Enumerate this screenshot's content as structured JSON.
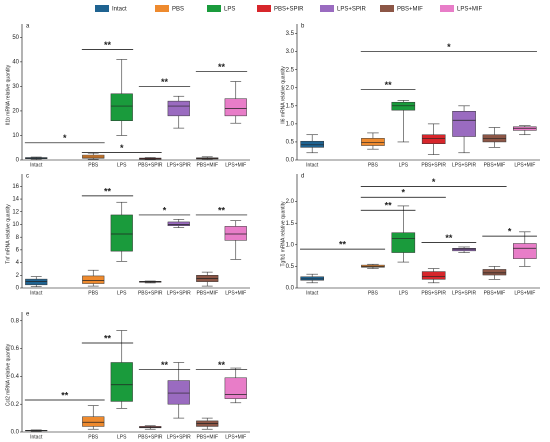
{
  "legend": [
    {
      "name": "Intact",
      "color": "#1f6391"
    },
    {
      "name": "PBS",
      "color": "#ee8a2e"
    },
    {
      "name": "LPS",
      "color": "#1a9b3c"
    },
    {
      "name": "PBS+SPIR",
      "color": "#d7262b"
    },
    {
      "name": "LPS+SPIR",
      "color": "#9a6bc0"
    },
    {
      "name": "PBS+MIF",
      "color": "#8c5646"
    },
    {
      "name": "LPS+MIF",
      "color": "#e87dc8"
    }
  ],
  "chart_data": [
    {
      "type": "box",
      "label": "a",
      "ylabel": "Il1b mRNA relative quantity",
      "categories": [
        "Intact",
        null,
        "PBS",
        "LPS",
        "PBS+SPIR",
        "LPS+SPIR",
        "PBS+MIF",
        "LPS+MIF"
      ],
      "boxes": [
        {
          "min": 0.2,
          "q1": 0.5,
          "median": 0.8,
          "q3": 1.0,
          "max": 1.2
        },
        null,
        {
          "min": 0.3,
          "q1": 0.7,
          "median": 1.2,
          "q3": 2.0,
          "max": 2.8
        },
        {
          "min": 10,
          "q1": 16,
          "median": 22,
          "q3": 27,
          "max": 41
        },
        {
          "min": 0.1,
          "q1": 0.3,
          "median": 0.5,
          "q3": 0.8,
          "max": 1.0
        },
        {
          "min": 13,
          "q1": 18,
          "median": 22,
          "q3": 24,
          "max": 26
        },
        {
          "min": 0.2,
          "q1": 0.4,
          "median": 0.6,
          "q3": 0.9,
          "max": 1.3
        },
        {
          "min": 15,
          "q1": 18,
          "median": 21,
          "q3": 25,
          "max": 32
        }
      ],
      "ylim": [
        0,
        53
      ],
      "yticks": [
        0,
        10,
        20,
        30,
        40,
        50
      ],
      "annotations": [
        {
          "label": "**",
          "from": 2,
          "to": 3,
          "y": 45
        },
        {
          "label": "**",
          "from": 4,
          "to": 5,
          "y": 30
        },
        {
          "label": "**",
          "from": 6,
          "to": 7,
          "y": 36
        },
        {
          "label": "*",
          "from": 0,
          "to": 2,
          "y": 7
        },
        {
          "label": "*",
          "from": 2,
          "to": 4,
          "y": 3
        }
      ]
    },
    {
      "type": "box",
      "label": "b",
      "ylabel": "Il6 mRNA relative quantity",
      "categories": [
        "Intact",
        null,
        "PBS",
        "LPS",
        "PBS+SPIR",
        "LPS+SPIR",
        "PBS+MIF",
        "LPS+MIF"
      ],
      "boxes": [
        {
          "min": 0.2,
          "q1": 0.35,
          "median": 0.42,
          "q3": 0.52,
          "max": 0.7
        },
        null,
        {
          "min": 0.3,
          "q1": 0.4,
          "median": 0.48,
          "q3": 0.6,
          "max": 0.75
        },
        {
          "min": 0.5,
          "q1": 1.38,
          "median": 1.5,
          "q3": 1.6,
          "max": 1.65
        },
        {
          "min": 0.15,
          "q1": 0.45,
          "median": 0.6,
          "q3": 0.7,
          "max": 1.0
        },
        {
          "min": 0.2,
          "q1": 0.65,
          "median": 1.1,
          "q3": 1.35,
          "max": 1.5
        },
        {
          "min": 0.35,
          "q1": 0.5,
          "median": 0.6,
          "q3": 0.7,
          "max": 0.9
        },
        {
          "min": 0.7,
          "q1": 0.82,
          "median": 0.88,
          "q3": 0.92,
          "max": 0.95
        }
      ],
      "ylim": [
        0,
        3.6
      ],
      "yticks": [
        {
          "value": 0,
          "label": "0.0"
        },
        0.5,
        {
          "value": 1,
          "label": "1.0"
        },
        1.5,
        {
          "value": 2,
          "label": "2.0"
        },
        2.5,
        {
          "value": 3,
          "label": "3.0"
        },
        3.5
      ],
      "annotations": [
        {
          "label": "**",
          "from": 2,
          "to": 3,
          "y": 1.95
        },
        {
          "label": "*",
          "from": 2,
          "to": 7,
          "y": 3.0
        }
      ]
    },
    {
      "type": "box",
      "label": "c",
      "ylabel": "Tnf mRNA relative quantity",
      "categories": [
        "Intact",
        null,
        "PBS",
        "LPS",
        "PBS+SPIR",
        "LPS+SPIR",
        "PBS+MIF",
        "LPS+MIF"
      ],
      "boxes": [
        {
          "min": 0.2,
          "q1": 0.5,
          "median": 1.0,
          "q3": 1.4,
          "max": 1.8
        },
        null,
        {
          "min": 0.3,
          "q1": 0.7,
          "median": 1.2,
          "q3": 1.9,
          "max": 2.8
        },
        {
          "min": 4.2,
          "q1": 5.8,
          "median": 8.5,
          "q3": 11.5,
          "max": 13.5
        },
        {
          "min": 0.8,
          "q1": 0.9,
          "median": 1.0,
          "q3": 1.05,
          "max": 1.1
        },
        {
          "min": 9.5,
          "q1": 9.8,
          "median": 10.0,
          "q3": 10.4,
          "max": 10.8
        },
        {
          "min": 0.3,
          "q1": 1.0,
          "median": 1.5,
          "q3": 2.0,
          "max": 2.5
        },
        {
          "min": 4.5,
          "q1": 7.5,
          "median": 8.5,
          "q3": 9.7,
          "max": 10.6
        }
      ],
      "ylim": [
        0,
        17
      ],
      "yticks": [
        0,
        2,
        4,
        6,
        8,
        10,
        12,
        14,
        16
      ],
      "annotations": [
        {
          "label": "**",
          "from": 2,
          "to": 3,
          "y": 14.5
        },
        {
          "label": "*",
          "from": 4,
          "to": 5,
          "y": 11.5
        },
        {
          "label": "**",
          "from": 6,
          "to": 7,
          "y": 11.5
        }
      ]
    },
    {
      "type": "box",
      "label": "d",
      "ylabel": "Tgfb1 mRNA relative quantity",
      "categories": [
        "Intact",
        null,
        "PBS",
        "LPS",
        "PBS+SPIR",
        "LPS+SPIR",
        "PBS+MIF",
        "LPS+MIF"
      ],
      "boxes": [
        {
          "min": 0.12,
          "q1": 0.18,
          "median": 0.21,
          "q3": 0.26,
          "max": 0.32
        },
        null,
        {
          "min": 0.45,
          "q1": 0.48,
          "median": 0.5,
          "q3": 0.53,
          "max": 0.55
        },
        {
          "min": 0.6,
          "q1": 0.82,
          "median": 1.15,
          "q3": 1.28,
          "max": 1.9
        },
        {
          "min": 0.12,
          "q1": 0.2,
          "median": 0.27,
          "q3": 0.38,
          "max": 0.45
        },
        {
          "min": 0.82,
          "q1": 0.86,
          "median": 0.9,
          "q3": 0.92,
          "max": 0.95
        },
        {
          "min": 0.2,
          "q1": 0.3,
          "median": 0.35,
          "q3": 0.43,
          "max": 0.5
        },
        {
          "min": 0.5,
          "q1": 0.68,
          "median": 0.92,
          "q3": 1.03,
          "max": 1.3
        }
      ],
      "ylim": [
        0,
        2.5
      ],
      "yticks": [
        {
          "value": 0,
          "label": "0.0"
        },
        0.5,
        {
          "value": 1,
          "label": "1.0"
        },
        1.5,
        {
          "value": 2,
          "label": "2.0"
        }
      ],
      "annotations": [
        {
          "label": "*",
          "from": 2,
          "to": 6,
          "y": 2.35
        },
        {
          "label": "*",
          "from": 2,
          "to": 4,
          "y": 2.1
        },
        {
          "label": "**",
          "from": 2,
          "to": 3,
          "y": 1.8
        },
        {
          "label": "**",
          "from": 0,
          "to": 2,
          "y": 0.9
        },
        {
          "label": "**",
          "from": 4,
          "to": 5,
          "y": 1.05
        },
        {
          "label": "*",
          "from": 6,
          "to": 7,
          "y": 1.2
        }
      ]
    },
    {
      "type": "box",
      "label": "e",
      "ylabel": "Ccl2 mRNA relative quantity",
      "categories": [
        "Intact",
        null,
        "PBS",
        "LPS",
        "PBS+SPIR",
        "LPS+SPIR",
        "PBS+MIF",
        "LPS+MIF"
      ],
      "boxes": [
        {
          "min": 0.005,
          "q1": 0.008,
          "median": 0.01,
          "q3": 0.012,
          "max": 0.015
        },
        null,
        {
          "min": 0.02,
          "q1": 0.04,
          "median": 0.07,
          "q3": 0.11,
          "max": 0.19
        },
        {
          "min": 0.17,
          "q1": 0.22,
          "median": 0.34,
          "q3": 0.5,
          "max": 0.73
        },
        {
          "min": 0.02,
          "q1": 0.03,
          "median": 0.035,
          "q3": 0.04,
          "max": 0.045
        },
        {
          "min": 0.1,
          "q1": 0.2,
          "median": 0.28,
          "q3": 0.37,
          "max": 0.5
        },
        {
          "min": 0.02,
          "q1": 0.04,
          "median": 0.06,
          "q3": 0.08,
          "max": 0.1
        },
        {
          "min": 0.21,
          "q1": 0.24,
          "median": 0.27,
          "q3": 0.39,
          "max": 0.46
        }
      ],
      "ylim": [
        0,
        0.82
      ],
      "yticks": [
        {
          "value": 0,
          "label": "0.0"
        },
        0.2,
        0.4,
        0.6,
        0.8
      ],
      "annotations": [
        {
          "label": "**",
          "from": 0,
          "to": 2,
          "y": 0.23
        },
        {
          "label": "**",
          "from": 2,
          "to": 3,
          "y": 0.64
        },
        {
          "label": "**",
          "from": 4,
          "to": 5,
          "y": 0.45
        },
        {
          "label": "**",
          "from": 6,
          "to": 7,
          "y": 0.45
        }
      ]
    }
  ]
}
